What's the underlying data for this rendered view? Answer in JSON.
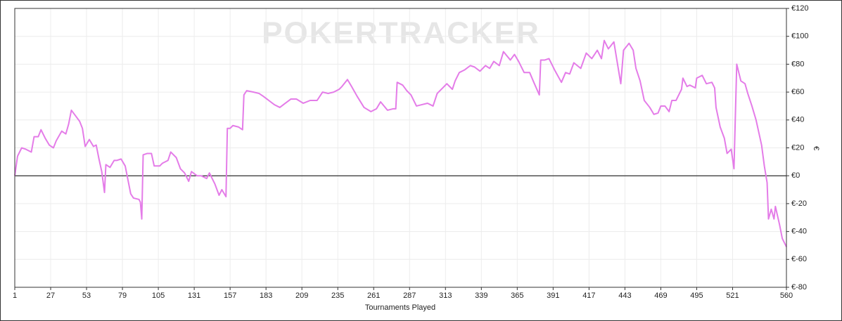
{
  "chart_data": {
    "type": "line",
    "watermark": "POKERTRACKER",
    "xlabel": "Tournaments Played",
    "ylabel": "€",
    "color": "#e47ce8",
    "x": [
      1,
      3,
      6,
      9,
      13,
      15,
      18,
      20,
      23,
      26,
      29,
      31,
      35,
      38,
      40,
      42,
      45,
      48,
      50,
      52,
      55,
      58,
      60,
      62,
      64,
      66,
      67,
      70,
      73,
      75,
      78,
      81,
      83,
      85,
      87,
      91,
      92,
      93,
      94,
      97,
      100,
      102,
      106,
      108,
      112,
      114,
      118,
      121,
      124,
      127,
      129,
      133,
      136,
      140,
      142,
      146,
      149,
      151,
      154,
      155,
      157,
      159,
      163,
      166,
      167,
      169,
      174,
      178,
      181,
      185,
      189,
      193,
      197,
      201,
      205,
      210,
      215,
      220,
      224,
      228,
      232,
      236,
      238,
      242,
      245,
      249,
      254,
      259,
      263,
      266,
      271,
      275,
      277,
      278,
      282,
      285,
      288,
      292,
      296,
      300,
      304,
      307,
      311,
      314,
      318,
      320,
      323,
      327,
      331,
      334,
      338,
      342,
      345,
      348,
      352,
      355,
      360,
      363,
      366,
      370,
      374,
      377,
      381,
      382,
      385,
      388,
      392,
      397,
      400,
      403,
      406,
      411,
      415,
      419,
      423,
      426,
      428,
      431,
      435,
      438,
      440,
      442,
      446,
      449,
      451,
      454,
      457,
      461,
      464,
      467,
      469,
      472,
      475,
      477,
      480,
      484,
      485,
      488,
      490,
      494,
      495,
      499,
      502,
      506,
      508,
      509,
      512,
      515,
      517,
      520,
      522,
      524,
      527,
      530,
      532,
      535,
      538,
      542,
      544,
      546,
      547,
      549,
      551,
      552,
      555,
      557,
      560
    ],
    "values": [
      0,
      14,
      20,
      19,
      17,
      28,
      28,
      33,
      27,
      22,
      20,
      25,
      32,
      30,
      37,
      47,
      43,
      39,
      34,
      21,
      26,
      21,
      22,
      12,
      3,
      -12,
      8,
      6,
      11,
      11,
      12,
      7,
      -3,
      -13,
      -16,
      -17,
      -19,
      -31,
      15,
      16,
      16,
      7,
      7,
      9,
      11,
      17,
      13,
      5,
      2,
      -4,
      3,
      0,
      0,
      -2,
      2,
      -6,
      -14,
      -10,
      -15,
      34,
      34,
      36,
      35,
      33,
      58,
      61,
      60,
      59,
      57,
      54,
      51,
      49,
      52,
      55,
      55,
      52,
      54,
      54,
      60,
      59,
      60,
      62,
      64,
      69,
      64,
      57,
      49,
      46,
      48,
      53,
      47,
      48,
      48,
      67,
      65,
      61,
      58,
      50,
      51,
      52,
      50,
      59,
      63,
      66,
      62,
      68,
      74,
      76,
      79,
      78,
      75,
      79,
      77,
      82,
      79,
      89,
      83,
      87,
      82,
      74,
      74,
      67,
      58,
      83,
      83,
      84,
      76,
      67,
      74,
      73,
      81,
      77,
      88,
      84,
      90,
      84,
      97,
      91,
      96,
      78,
      66,
      90,
      95,
      90,
      77,
      68,
      54,
      49,
      44,
      45,
      50,
      50,
      46,
      54,
      54,
      62,
      70,
      64,
      65,
      63,
      70,
      72,
      66,
      67,
      63,
      49,
      35,
      27,
      16,
      19,
      5,
      80,
      68,
      66,
      59,
      50,
      40,
      22,
      7,
      -5,
      -31,
      -24,
      -31,
      -22,
      -35,
      -45,
      -51
    ],
    "xlim": [
      1,
      560
    ],
    "xticks": [
      1,
      27,
      53,
      79,
      105,
      131,
      157,
      183,
      209,
      235,
      261,
      287,
      313,
      339,
      365,
      391,
      417,
      443,
      469,
      495,
      521,
      560
    ],
    "ylim": [
      -80,
      120
    ],
    "yticks": [
      {
        "value": -80,
        "label": "€-80"
      },
      {
        "value": -60,
        "label": "€-60"
      },
      {
        "value": -40,
        "label": "€-40"
      },
      {
        "value": -20,
        "label": "€-20"
      },
      {
        "value": 0,
        "label": "€0"
      },
      {
        "value": 20,
        "label": "€20"
      },
      {
        "value": 40,
        "label": "€40"
      },
      {
        "value": 60,
        "label": "€60"
      },
      {
        "value": 80,
        "label": "€80"
      },
      {
        "value": 100,
        "label": "€100"
      },
      {
        "value": 120,
        "label": "€120"
      }
    ],
    "grid": true
  }
}
